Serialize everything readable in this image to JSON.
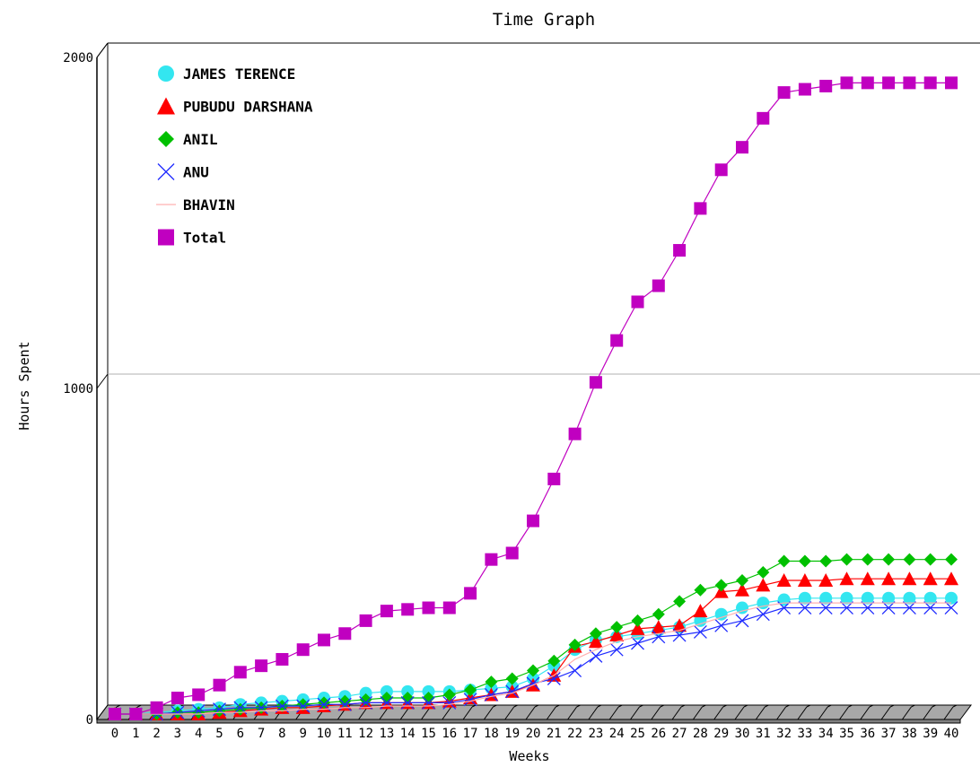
{
  "chart_data": {
    "type": "line",
    "title": "Time Graph",
    "xlabel": "Weeks",
    "ylabel": "Hours Spent",
    "ylim": [
      0,
      2000
    ],
    "yticks": [
      "0",
      "1000",
      "2000"
    ],
    "grid": true,
    "legend_placement": "top-left",
    "x": [
      0,
      1,
      2,
      3,
      4,
      5,
      6,
      7,
      8,
      9,
      10,
      11,
      12,
      13,
      14,
      15,
      16,
      17,
      18,
      19,
      20,
      21,
      22,
      23,
      24,
      25,
      26,
      27,
      28,
      29,
      30,
      31,
      32,
      33,
      34,
      35,
      36,
      37,
      38,
      39,
      40
    ],
    "x_labels": [
      "0",
      "1",
      "2",
      "3",
      "4",
      "5",
      "6",
      "7",
      "8",
      "9",
      "10",
      "11",
      "12",
      "13",
      "14",
      "15",
      "16",
      "17",
      "18",
      "19",
      "20",
      "21",
      "22",
      "23",
      "24",
      "25",
      "26",
      "27",
      "28",
      "29",
      "30",
      "31",
      "32",
      "33",
      "34",
      "35",
      "36",
      "37",
      "38",
      "39",
      "40"
    ],
    "series": [
      {
        "name": "JAMES TERENCE",
        "color": "#33e6f0",
        "marker": "circle",
        "values": [
          0,
          0,
          5,
          10,
          15,
          20,
          30,
          35,
          40,
          45,
          50,
          55,
          65,
          70,
          70,
          70,
          70,
          75,
          80,
          85,
          110,
          150,
          200,
          230,
          240,
          250,
          260,
          270,
          290,
          310,
          330,
          345,
          355,
          360,
          360,
          360,
          360,
          360,
          360,
          360,
          360
        ]
      },
      {
        "name": "PUBUDU DARSHANA",
        "color": "#ff0000",
        "marker": "triangle",
        "values": [
          0,
          0,
          0,
          0,
          0,
          5,
          10,
          15,
          20,
          20,
          25,
          30,
          35,
          35,
          35,
          35,
          40,
          50,
          60,
          70,
          90,
          120,
          210,
          225,
          245,
          265,
          270,
          275,
          320,
          380,
          385,
          400,
          415,
          415,
          415,
          420,
          420,
          420,
          420,
          420,
          420
        ]
      },
      {
        "name": "ANIL",
        "color": "#00c000",
        "marker": "diamond",
        "values": [
          0,
          0,
          0,
          5,
          5,
          10,
          15,
          20,
          25,
          30,
          35,
          40,
          45,
          50,
          50,
          50,
          60,
          75,
          100,
          110,
          135,
          165,
          215,
          250,
          270,
          290,
          310,
          350,
          385,
          400,
          415,
          440,
          475,
          475,
          475,
          480,
          480,
          480,
          480,
          480,
          480
        ]
      },
      {
        "name": "ANU",
        "color": "#1f2bff",
        "marker": "cross",
        "values": [
          0,
          0,
          0,
          5,
          10,
          15,
          20,
          20,
          25,
          25,
          30,
          30,
          35,
          35,
          35,
          35,
          35,
          45,
          60,
          70,
          95,
          110,
          135,
          180,
          200,
          220,
          240,
          245,
          255,
          275,
          290,
          310,
          330,
          330,
          330,
          330,
          330,
          330,
          330,
          330,
          330
        ]
      },
      {
        "name": "BHAVIN",
        "color": "#ffb0b0",
        "marker": "none",
        "values": [
          0,
          0,
          0,
          0,
          0,
          5,
          5,
          10,
          10,
          15,
          15,
          20,
          20,
          25,
          25,
          25,
          30,
          40,
          55,
          65,
          90,
          120,
          170,
          200,
          225,
          240,
          250,
          260,
          280,
          300,
          320,
          335,
          345,
          345,
          345,
          345,
          345,
          345,
          345,
          345,
          345
        ]
      },
      {
        "name": "Total",
        "color": "#c000c0",
        "marker": "square",
        "values": [
          0,
          0,
          20,
          50,
          60,
          90,
          130,
          150,
          170,
          200,
          230,
          250,
          290,
          320,
          325,
          330,
          330,
          375,
          480,
          500,
          600,
          730,
          870,
          1030,
          1160,
          1280,
          1330,
          1440,
          1570,
          1690,
          1760,
          1850,
          1930,
          1940,
          1950,
          1960,
          1960,
          1960,
          1960,
          1960,
          1960
        ]
      }
    ]
  }
}
